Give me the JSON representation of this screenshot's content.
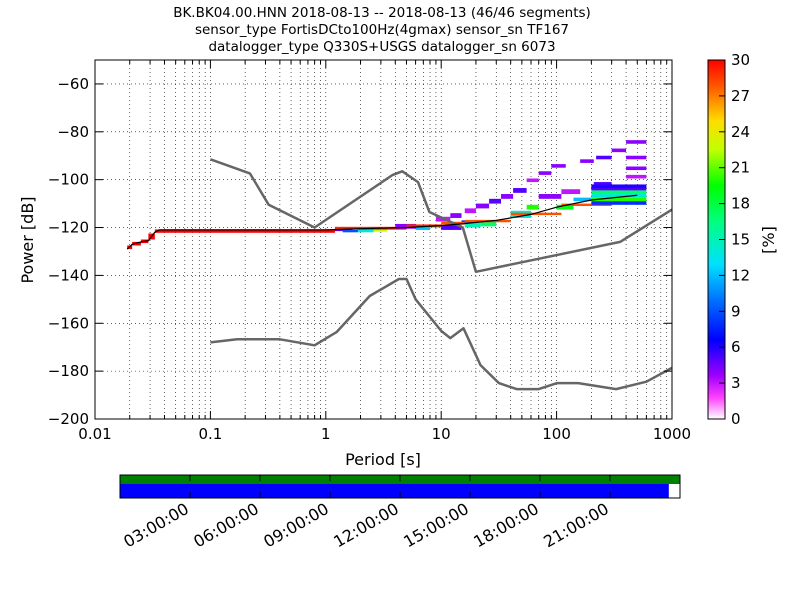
{
  "chart_data": {
    "type": "heatmap",
    "title_lines": [
      "BK.BK04.00.HNN   2018-08-13 -- 2018-08-13  (46/46 segments)",
      "sensor_type FortisDCto100Hz(4gmax) sensor_sn TF167",
      "datalogger_type Q330S+USGS datalogger_sn 6073"
    ],
    "xlabel": "Period [s]",
    "ylabel": "Power [dB]",
    "xscale": "log",
    "xlim": [
      0.01,
      1000
    ],
    "ylim": [
      -200,
      -50
    ],
    "x_tick_labels": [
      "0.01",
      "0.1",
      "1",
      "10",
      "100",
      "1000"
    ],
    "y_tick_labels": [
      "−60",
      "−80",
      "−100",
      "−120",
      "−140",
      "−160",
      "−180",
      "−200"
    ],
    "y_ticks": [
      -60,
      -80,
      -100,
      -120,
      -140,
      -160,
      -180,
      -200
    ],
    "grid": true,
    "colorbar": {
      "label": "[%]",
      "range": [
        0,
        30
      ],
      "tick_labels": [
        "0",
        "3",
        "6",
        "9",
        "12",
        "15",
        "18",
        "21",
        "24",
        "27",
        "30"
      ],
      "ticks": [
        0,
        3,
        6,
        9,
        12,
        15,
        18,
        21,
        24,
        27,
        30
      ]
    },
    "noise_models": {
      "color": "#666666",
      "high": {
        "x": [
          0.1,
          0.22,
          0.32,
          0.8,
          3.8,
          4.6,
          6.3,
          7.9,
          15.4,
          20,
          354.8,
          1000
        ],
        "y": [
          -91.5,
          -97.4,
          -110.5,
          -120,
          -98,
          -96.5,
          -101,
          -113.5,
          -120,
          -138.5,
          -126,
          -112.5
        ]
      },
      "low": {
        "x": [
          0.1,
          0.17,
          0.4,
          0.8,
          1.24,
          2.4,
          4.3,
          5,
          6,
          10,
          12,
          15.6,
          21.9,
          31.6,
          45,
          70,
          101,
          154,
          328,
          600,
          1000
        ],
        "y": [
          -168,
          -166.7,
          -166.7,
          -169.2,
          -163.7,
          -148.6,
          -141.5,
          -141.5,
          -150,
          -163.2,
          -166.2,
          -162.1,
          -177.5,
          -185,
          -187.5,
          -187.5,
          -185,
          -185,
          -187.5,
          -184.4,
          -178.6
        ]
      }
    },
    "mean_curve": {
      "color": "#000000",
      "x": [
        0.019,
        0.021,
        0.025,
        0.029,
        0.033,
        0.036,
        0.05,
        0.1,
        0.5,
        1,
        2,
        5,
        10,
        15,
        30,
        60,
        100,
        200,
        500
      ],
      "y": [
        -129,
        -127,
        -126,
        -125.5,
        -122,
        -121,
        -121,
        -121,
        -121,
        -121,
        -120.5,
        -120,
        -119.2,
        -118.5,
        -117,
        -114.5,
        -111.5,
        -108.5,
        -106.5
      ]
    },
    "histogram_cells": [
      {
        "x": [
          0.019,
          0.021
        ],
        "y": [
          -129,
          -127.5
        ],
        "pct": 30
      },
      {
        "x": [
          0.021,
          0.025
        ],
        "y": [
          -127.5,
          -126
        ],
        "pct": 30
      },
      {
        "x": [
          0.025,
          0.029
        ],
        "y": [
          -126.5,
          -125
        ],
        "pct": 30
      },
      {
        "x": [
          0.029,
          0.033
        ],
        "y": [
          -125,
          -122.5
        ],
        "pct": 30
      },
      {
        "x": [
          0.033,
          1.2
        ],
        "y": [
          -122.2,
          -120.8
        ],
        "pct": 30
      },
      {
        "x": [
          1.2,
          1.7
        ],
        "y": [
          -121.5,
          -120
        ],
        "pct": 5
      },
      {
        "x": [
          1.4,
          1.9
        ],
        "y": [
          -122,
          -121
        ],
        "pct": 9
      },
      {
        "x": [
          1.9,
          2.6
        ],
        "y": [
          -122,
          -120.5
        ],
        "pct": 14
      },
      {
        "x": [
          2.6,
          3.4
        ],
        "y": [
          -121.7,
          -120.3
        ],
        "pct": 23
      },
      {
        "x": [
          1.2,
          5
        ],
        "y": [
          -120.9,
          -119.7
        ],
        "pct": 29
      },
      {
        "x": [
          4,
          6
        ],
        "y": [
          -120.5,
          -118.5
        ],
        "pct": 4
      },
      {
        "x": [
          6,
          8
        ],
        "y": [
          -121,
          -119
        ],
        "pct": 12
      },
      {
        "x": [
          8,
          10
        ],
        "y": [
          -120,
          -118.8
        ],
        "pct": 19
      },
      {
        "x": [
          5,
          10
        ],
        "y": [
          -119.7,
          -118.7
        ],
        "pct": 29
      },
      {
        "x": [
          9,
          12
        ],
        "y": [
          -117.5,
          -115.5
        ],
        "pct": 3
      },
      {
        "x": [
          12,
          15
        ],
        "y": [
          -116,
          -114
        ],
        "pct": 4
      },
      {
        "x": [
          10,
          15
        ],
        "y": [
          -121,
          -119
        ],
        "pct": 5
      },
      {
        "x": [
          15,
          19
        ],
        "y": [
          -118.5,
          -117
        ],
        "pct": 8
      },
      {
        "x": [
          10,
          16
        ],
        "y": [
          -118.8,
          -117.6
        ],
        "pct": 28
      },
      {
        "x": [
          16,
          20
        ],
        "y": [
          -114,
          -112
        ],
        "pct": 3
      },
      {
        "x": [
          20,
          26
        ],
        "y": [
          -112,
          -110
        ],
        "pct": 4
      },
      {
        "x": [
          16,
          22
        ],
        "y": [
          -120,
          -118
        ],
        "pct": 15
      },
      {
        "x": [
          26,
          33
        ],
        "y": [
          -110,
          -108
        ],
        "pct": 5
      },
      {
        "x": [
          22,
          30
        ],
        "y": [
          -119.5,
          -117
        ],
        "pct": 17
      },
      {
        "x": [
          16,
          40
        ],
        "y": [
          -117.8,
          -116.8
        ],
        "pct": 28
      },
      {
        "x": [
          33,
          42
        ],
        "y": [
          -108,
          -106
        ],
        "pct": 4
      },
      {
        "x": [
          42,
          55
        ],
        "y": [
          -105.5,
          -103.5
        ],
        "pct": 5
      },
      {
        "x": [
          40,
          60
        ],
        "y": [
          -116,
          -113
        ],
        "pct": 14
      },
      {
        "x": [
          55,
          70
        ],
        "y": [
          -101,
          -99.5
        ],
        "pct": 3
      },
      {
        "x": [
          55,
          70
        ],
        "y": [
          -112.5,
          -110.5
        ],
        "pct": 20
      },
      {
        "x": [
          70,
          90
        ],
        "y": [
          -98,
          -96.5
        ],
        "pct": 4
      },
      {
        "x": [
          90,
          120
        ],
        "y": [
          -95,
          -93.5
        ],
        "pct": 4
      },
      {
        "x": [
          70,
          110
        ],
        "y": [
          -108,
          -106
        ],
        "pct": 4
      },
      {
        "x": [
          110,
          160
        ],
        "y": [
          -106,
          -104
        ],
        "pct": 3
      },
      {
        "x": [
          40,
          110
        ],
        "y": [
          -114.8,
          -113.8
        ],
        "pct": 28
      },
      {
        "x": [
          100,
          140
        ],
        "y": [
          -112.5,
          -110.5
        ],
        "pct": 19
      },
      {
        "x": [
          140,
          200
        ],
        "y": [
          -109,
          -107.5
        ],
        "pct": 12
      },
      {
        "x": [
          110,
          300
        ],
        "y": [
          -111,
          -110
        ],
        "pct": 28
      },
      {
        "x": [
          160,
          210
        ],
        "y": [
          -93,
          -91.5
        ],
        "pct": 4
      },
      {
        "x": [
          220,
          300
        ],
        "y": [
          -91.5,
          -90
        ],
        "pct": 5
      },
      {
        "x": [
          300,
          400
        ],
        "y": [
          -88.5,
          -87
        ],
        "pct": 4
      },
      {
        "x": [
          400,
          600
        ],
        "y": [
          -85,
          -83.5
        ],
        "pct": 4
      },
      {
        "x": [
          210,
          300
        ],
        "y": [
          -102.5,
          -101
        ],
        "pct": 5
      },
      {
        "x": [
          200,
          600
        ],
        "y": [
          -104.5,
          -103
        ],
        "pct": 5
      },
      {
        "x": [
          200,
          600
        ],
        "y": [
          -107.5,
          -106
        ],
        "pct": 14
      },
      {
        "x": [
          200,
          600
        ],
        "y": [
          -106,
          -104.5
        ],
        "pct": 17
      },
      {
        "x": [
          200,
          600
        ],
        "y": [
          -109,
          -107.5
        ],
        "pct": 20
      },
      {
        "x": [
          200,
          600
        ],
        "y": [
          -110.5,
          -109
        ],
        "pct": 8
      },
      {
        "x": [
          200,
          600
        ],
        "y": [
          -103.5,
          -102
        ],
        "pct": 6
      },
      {
        "x": [
          400,
          600
        ],
        "y": [
          -96,
          -94.5
        ],
        "pct": 4
      },
      {
        "x": [
          400,
          600
        ],
        "y": [
          -99.5,
          -98
        ],
        "pct": 3
      },
      {
        "x": [
          400,
          600
        ],
        "y": [
          -91.5,
          -90
        ],
        "pct": 4
      }
    ]
  },
  "coverage": {
    "time_tick_labels": [
      "03:00:00",
      "06:00:00",
      "09:00:00",
      "12:00:00",
      "15:00:00",
      "18:00:00",
      "21:00:00"
    ],
    "time_ticks_hours": [
      3,
      6,
      9,
      12,
      15,
      18,
      21
    ],
    "range_hours": [
      0,
      24
    ],
    "data_coverage_fraction": 0.98,
    "colors": {
      "top": "#008000",
      "bottom": "#0000ff"
    }
  }
}
